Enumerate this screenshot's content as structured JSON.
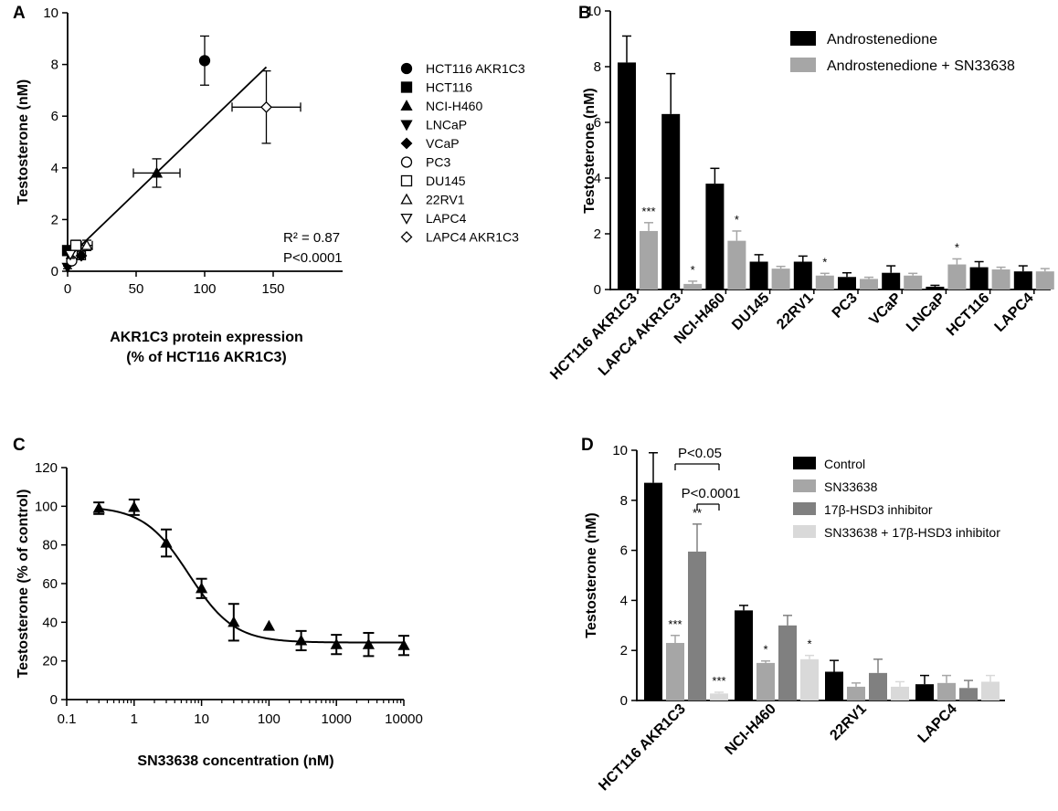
{
  "chart_data": [
    {
      "panel": "A",
      "type": "scatter",
      "xlabel": "AKR1C3 protein expression",
      "xlabel2": "(% of HCT116 AKR1C3)",
      "ylabel": "Testosterone (nM)",
      "xlim": [
        0,
        175
      ],
      "ylim": [
        0,
        10
      ],
      "xticks": [
        "0",
        "50",
        "100",
        "150"
      ],
      "yticks": [
        "0",
        "2",
        "4",
        "6",
        "8",
        "10"
      ],
      "points": [
        {
          "name": "HCT116 AKR1C3",
          "x": 100,
          "y": 8.15,
          "yerr": 0.95,
          "xerr": 0,
          "marker": "circle-filled"
        },
        {
          "name": "HCT116",
          "x": 0,
          "y": 0.8,
          "yerr": 0.1,
          "xerr": 0,
          "marker": "square-filled"
        },
        {
          "name": "NCI-H460",
          "x": 65,
          "y": 3.8,
          "yerr": 0.55,
          "xerr": 17,
          "marker": "triangle-filled"
        },
        {
          "name": "LNCaP",
          "x": 0,
          "y": 0.15,
          "yerr": 0.05,
          "xerr": 0,
          "marker": "triangle-down-filled"
        },
        {
          "name": "VCaP",
          "x": 10,
          "y": 0.6,
          "yerr": 0.15,
          "xerr": 3,
          "marker": "diamond-filled"
        },
        {
          "name": "PC3",
          "x": 3,
          "y": 0.4,
          "yerr": 0.1,
          "xerr": 2,
          "marker": "circle-open"
        },
        {
          "name": "DU145",
          "x": 6,
          "y": 1.0,
          "yerr": 0.2,
          "xerr": 3,
          "marker": "square-open"
        },
        {
          "name": "22RV1",
          "x": 14,
          "y": 1.0,
          "yerr": 0.2,
          "xerr": 4,
          "marker": "triangle-open"
        },
        {
          "name": "LAPC4",
          "x": 2,
          "y": 0.65,
          "yerr": 0.15,
          "xerr": 2,
          "marker": "triangle-down-open"
        },
        {
          "name": "LAPC4 AKR1C3",
          "x": 145,
          "y": 6.35,
          "yerr": 1.4,
          "xerr": 25,
          "marker": "diamond-open"
        }
      ],
      "fit": {
        "x": [
          0,
          145
        ],
        "y": [
          0.5,
          7.9
        ]
      },
      "annotation": {
        "r2": "R² = 0.87",
        "p": "P<0.0001"
      }
    },
    {
      "panel": "B",
      "type": "bar",
      "ylabel": "Testosterone (nM)",
      "ylim": [
        0,
        10
      ],
      "yticks": [
        "0",
        "2",
        "4",
        "6",
        "8",
        "10"
      ],
      "categories": [
        "HCT116 AKR1C3",
        "LAPC4 AKR1C3",
        "NCI-H460",
        "DU145",
        "22RV1",
        "PC3",
        "VCaP",
        "LNCaP",
        "HCT116",
        "LAPC4"
      ],
      "series": [
        {
          "name": "Androstenedione",
          "color": "#000000",
          "values": [
            8.15,
            6.3,
            3.8,
            1.0,
            1.0,
            0.45,
            0.6,
            0.1,
            0.8,
            0.65
          ],
          "errors": [
            0.95,
            1.45,
            0.55,
            0.25,
            0.2,
            0.15,
            0.25,
            0.05,
            0.2,
            0.2
          ]
        },
        {
          "name": "Androstenedione + SN33638",
          "color": "#a6a6a6",
          "values": [
            2.1,
            0.2,
            1.75,
            0.75,
            0.5,
            0.38,
            0.5,
            0.9,
            0.72,
            0.65
          ],
          "errors": [
            0.3,
            0.1,
            0.35,
            0.08,
            0.08,
            0.06,
            0.08,
            0.2,
            0.08,
            0.1
          ]
        }
      ],
      "significance": [
        {
          "category": 0,
          "series": 1,
          "label": "***"
        },
        {
          "category": 1,
          "series": 1,
          "label": "*"
        },
        {
          "category": 2,
          "series": 1,
          "label": "*"
        },
        {
          "category": 4,
          "series": 1,
          "label": "*"
        },
        {
          "category": 7,
          "series": 1,
          "label": "*"
        }
      ]
    },
    {
      "panel": "C",
      "type": "line",
      "scale": "log",
      "xlabel": "SN33638 concentration (nM)",
      "ylabel": "Testosterone (% of control)",
      "xlim": [
        0.1,
        10000
      ],
      "ylim": [
        0,
        120
      ],
      "xticks": [
        0.1,
        1,
        10,
        100,
        1000,
        10000
      ],
      "xtick_labels": [
        "0.1",
        "1",
        "10",
        "100",
        "1000",
        "10000"
      ],
      "yticks": [
        "0",
        "20",
        "40",
        "60",
        "80",
        "100",
        "120"
      ],
      "points": [
        {
          "x": 0.3,
          "y": 99,
          "err": 3
        },
        {
          "x": 1,
          "y": 99.5,
          "err": 4
        },
        {
          "x": 3,
          "y": 81,
          "err": 7
        },
        {
          "x": 10,
          "y": 57.5,
          "err": 5
        },
        {
          "x": 30,
          "y": 40,
          "err": 9.5
        },
        {
          "x": 100,
          "y": 38,
          "err": 0
        },
        {
          "x": 300,
          "y": 30.5,
          "err": 5
        },
        {
          "x": 1000,
          "y": 28.5,
          "err": 5
        },
        {
          "x": 3000,
          "y": 28.5,
          "err": 6
        },
        {
          "x": 10000,
          "y": 28,
          "err": 5
        }
      ],
      "fit": {
        "bottom": 29.5,
        "top": 100,
        "ec50": 6.5,
        "hill": 1.3
      }
    },
    {
      "panel": "D",
      "type": "bar",
      "ylabel": "Testosterone (nM)",
      "ylim": [
        0,
        10
      ],
      "yticks": [
        "0",
        "2",
        "4",
        "6",
        "8",
        "10"
      ],
      "categories": [
        "HCT116 AKR1C3",
        "NCI-H460",
        "22RV1",
        "LAPC4"
      ],
      "series": [
        {
          "name": "Control",
          "color": "#000000",
          "values": [
            8.7,
            3.6,
            1.15,
            0.65
          ],
          "errors": [
            1.2,
            0.2,
            0.45,
            0.35
          ]
        },
        {
          "name": "SN33638",
          "color": "#a6a6a6",
          "values": [
            2.3,
            1.5,
            0.55,
            0.7
          ],
          "errors": [
            0.3,
            0.08,
            0.15,
            0.3
          ]
        },
        {
          "name": "17β-HSD3 inhibitor",
          "color": "#808080",
          "values": [
            5.95,
            3.0,
            1.1,
            0.5
          ],
          "errors": [
            1.1,
            0.4,
            0.55,
            0.3
          ]
        },
        {
          "name": "SN33638 + 17β-HSD3 inhibitor",
          "color": "#d9d9d9",
          "values": [
            0.28,
            1.65,
            0.55,
            0.75
          ],
          "errors": [
            0.05,
            0.15,
            0.2,
            0.25
          ]
        }
      ],
      "significance": [
        {
          "category": 0,
          "series": 1,
          "label": "***"
        },
        {
          "category": 0,
          "series": 2,
          "label": "**"
        },
        {
          "category": 0,
          "series": 3,
          "label": "***"
        },
        {
          "category": 1,
          "series": 1,
          "label": "*"
        },
        {
          "category": 1,
          "series": 3,
          "label": "*"
        }
      ],
      "brackets": [
        {
          "label": "P<0.05",
          "from_series": 1,
          "to_series": 3,
          "category": 0
        },
        {
          "label": "P<0.0001",
          "from_series": 2,
          "to_series": 3,
          "category": 0
        }
      ]
    }
  ]
}
